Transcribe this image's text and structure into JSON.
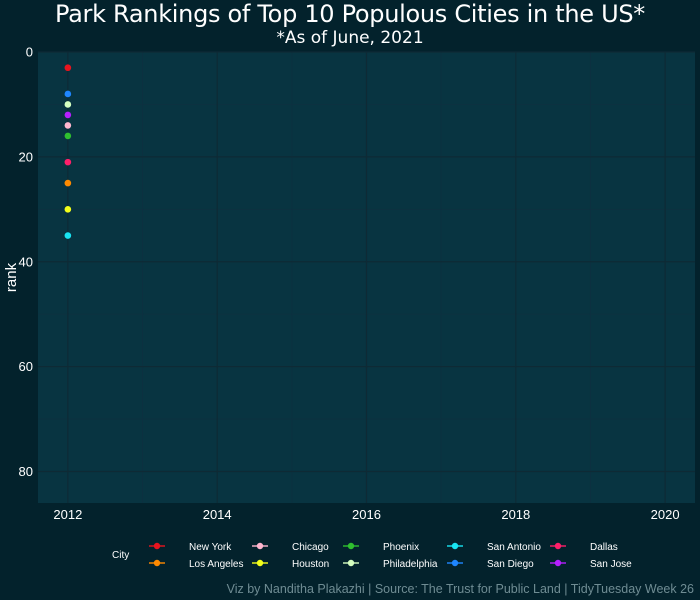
{
  "header": {
    "title": "Park Rankings of Top 10 Populous Cities in the US*",
    "subtitle": "*As of June, 2021"
  },
  "caption": "Viz by Nanditha Plakazhi | Source: The Trust for Public Land | TidyTuesday Week 26",
  "legend": {
    "title": "City",
    "position": "bottom"
  },
  "colors": {
    "background": "#03222c",
    "panel": "#083441",
    "grid_major": "#0e2a35",
    "grid_minor": "#0c3140",
    "axis_text": "#ffffff"
  },
  "chart_data": {
    "type": "scatter",
    "title": "Park Rankings of Top 10 Populous Cities in the US*",
    "subtitle": "*As of June, 2021",
    "xlabel": "",
    "ylabel": "rank",
    "xlim": [
      2011.6,
      2020.4
    ],
    "ylim": [
      0,
      86
    ],
    "y_reversed": true,
    "x_ticks": [
      2012,
      2014,
      2016,
      2018,
      2020
    ],
    "y_ticks": [
      0,
      20,
      40,
      60,
      80
    ],
    "grid": true,
    "legend_title": "City",
    "series": [
      {
        "name": "New York",
        "color": "#e8141e",
        "x": [
          2012
        ],
        "y": [
          3
        ]
      },
      {
        "name": "Los Angeles",
        "color": "#ff8a00",
        "x": [
          2012
        ],
        "y": [
          25
        ]
      },
      {
        "name": "Chicago",
        "color": "#ffb6cf",
        "x": [
          2012
        ],
        "y": [
          14
        ]
      },
      {
        "name": "Houston",
        "color": "#f4ff1a",
        "x": [
          2012
        ],
        "y": [
          30
        ]
      },
      {
        "name": "Phoenix",
        "color": "#2fbf2f",
        "x": [
          2012
        ],
        "y": [
          16
        ]
      },
      {
        "name": "Philadelphia",
        "color": "#d5ffc0",
        "x": [
          2012
        ],
        "y": [
          10
        ]
      },
      {
        "name": "San Antonio",
        "color": "#18e4f2",
        "x": [
          2012
        ],
        "y": [
          35
        ]
      },
      {
        "name": "San Diego",
        "color": "#1f86ff",
        "x": [
          2012
        ],
        "y": [
          8
        ]
      },
      {
        "name": "Dallas",
        "color": "#ff1f6a",
        "x": [
          2012
        ],
        "y": [
          21
        ]
      },
      {
        "name": "San Jose",
        "color": "#b51fff",
        "x": [
          2012
        ],
        "y": [
          12
        ]
      }
    ]
  }
}
